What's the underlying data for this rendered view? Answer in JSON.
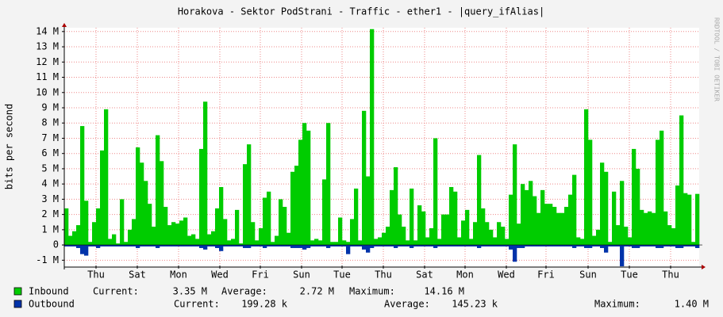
{
  "chart_data": {
    "type": "area",
    "title": "Horakova - Sektor PodStrani - Traffic - ether1 - |query_ifAlias|",
    "ylabel": "bits per second",
    "watermark": "RRDTOOL / TOBI OETIKER",
    "ylim": [
      -1.45,
      14.25
    ],
    "yticks": [
      {
        "value": -1,
        "label": "-1 M"
      },
      0,
      {
        "value": 1,
        "label": "1 M"
      },
      {
        "value": 2,
        "label": "2 M"
      },
      {
        "value": 3,
        "label": "3 M"
      },
      {
        "value": 4,
        "label": "4 M"
      },
      {
        "value": 5,
        "label": "5 M"
      },
      {
        "value": 6,
        "label": "6 M"
      },
      {
        "value": 7,
        "label": "7 M"
      },
      {
        "value": 8,
        "label": "8 M"
      },
      {
        "value": 9,
        "label": "9 M"
      },
      {
        "value": 10,
        "label": "10 M"
      },
      {
        "value": 11,
        "label": "11 M"
      },
      {
        "value": 12,
        "label": "12 M"
      },
      {
        "value": 13,
        "label": "13 M"
      },
      {
        "value": 14,
        "label": "14 M"
      }
    ],
    "xlim": [
      0,
      160
    ],
    "xticks": [
      {
        "value": 8,
        "label": "Thu"
      },
      {
        "value": 18.4,
        "label": "Sat"
      },
      {
        "value": 28.8,
        "label": "Mon"
      },
      {
        "value": 39.2,
        "label": "Wed"
      },
      {
        "value": 49.4,
        "label": "Fri"
      },
      {
        "value": 59.8,
        "label": "Sun"
      },
      {
        "value": 70,
        "label": "Tue"
      },
      {
        "value": 80.4,
        "label": "Thu"
      },
      {
        "value": 90.8,
        "label": "Sat"
      },
      {
        "value": 101,
        "label": "Mon"
      },
      {
        "value": 111.4,
        "label": "Wed"
      },
      {
        "value": 121.4,
        "label": "Fri"
      },
      {
        "value": 132,
        "label": "Sun"
      },
      {
        "value": 142.4,
        "label": "Tue"
      },
      {
        "value": 152.8,
        "label": "Thu"
      }
    ],
    "grid": true,
    "series": [
      {
        "name": "Inbound",
        "color": "#00cc00",
        "legend": [
          "Current:",
          "3.35 M",
          "Average:",
          "2.72 M",
          "Maximum:",
          "14.16 M"
        ],
        "values": [
          2.4,
          0.6,
          0.9,
          1.3,
          7.8,
          2.9,
          0.2,
          1.5,
          2.4,
          6.2,
          8.9,
          0.4,
          0.7,
          0.1,
          3.0,
          0.2,
          1.0,
          1.7,
          6.4,
          5.4,
          4.2,
          2.7,
          1.2,
          7.2,
          5.5,
          2.5,
          1.3,
          1.5,
          1.4,
          1.6,
          1.8,
          0.6,
          0.7,
          0.4,
          6.3,
          9.4,
          0.7,
          0.9,
          2.4,
          3.8,
          1.7,
          0.3,
          0.4,
          2.3,
          0.1,
          5.3,
          6.6,
          1.5,
          0.3,
          1.1,
          3.1,
          3.5,
          0.2,
          0.6,
          3.0,
          2.5,
          0.8,
          4.8,
          5.2,
          6.9,
          8.0,
          7.5,
          0.3,
          0.4,
          0.3,
          4.3,
          8.0,
          0.2,
          0.2,
          1.8,
          0.3,
          0.2,
          1.7,
          3.7,
          0.3,
          8.8,
          4.5,
          14.16,
          0.4,
          0.5,
          0.8,
          1.2,
          3.6,
          5.1,
          2.0,
          1.2,
          0.3,
          3.7,
          0.3,
          2.6,
          2.2,
          0.5,
          1.1,
          7.0,
          0.4,
          2.0,
          2.0,
          3.8,
          3.5,
          0.5,
          1.6,
          2.3,
          0.4,
          1.5,
          5.9,
          2.4,
          1.5,
          1.0,
          0.5,
          1.5,
          1.2,
          0.4,
          3.3,
          6.6,
          1.4,
          4.0,
          3.6,
          4.2,
          3.2,
          2.1,
          3.6,
          2.7,
          2.7,
          2.5,
          2.1,
          2.1,
          2.5,
          3.3,
          4.6,
          0.5,
          0.4,
          8.9,
          6.9,
          0.6,
          1.0,
          5.4,
          4.8,
          0.2,
          3.5,
          1.3,
          4.2,
          1.2,
          0.5,
          6.3,
          5.0,
          2.3,
          2.1,
          2.2,
          2.1,
          6.9,
          7.5,
          2.2,
          1.3,
          1.1,
          3.9,
          8.5,
          3.4,
          3.3,
          0.2,
          3.35
        ]
      },
      {
        "name": "Outbound",
        "color": "#0033aa",
        "legend": [
          "Current:",
          "199.28 k",
          "Average:",
          "145.23 k",
          "Maximum:",
          "1.40 M"
        ],
        "values": [
          -0.1,
          -0.1,
          -0.1,
          -0.2,
          -0.6,
          -0.7,
          -0.1,
          -0.1,
          -0.2,
          -0.1,
          -0.1,
          -0.1,
          -0.1,
          -0.1,
          -0.1,
          -0.1,
          -0.1,
          -0.1,
          -0.2,
          -0.1,
          -0.1,
          -0.1,
          -0.1,
          -0.2,
          -0.1,
          -0.1,
          -0.1,
          -0.1,
          -0.1,
          -0.1,
          -0.1,
          -0.1,
          -0.1,
          -0.1,
          -0.2,
          -0.3,
          -0.1,
          -0.1,
          -0.2,
          -0.4,
          -0.1,
          -0.1,
          -0.1,
          -0.1,
          -0.1,
          -0.2,
          -0.2,
          -0.1,
          -0.1,
          -0.1,
          -0.2,
          -0.1,
          -0.1,
          -0.1,
          -0.1,
          -0.1,
          -0.1,
          -0.2,
          -0.2,
          -0.2,
          -0.3,
          -0.2,
          -0.1,
          -0.1,
          -0.1,
          -0.1,
          -0.2,
          -0.1,
          -0.1,
          -0.1,
          -0.1,
          -0.6,
          -0.1,
          -0.1,
          -0.1,
          -0.3,
          -0.5,
          -0.2,
          -0.1,
          -0.1,
          -0.1,
          -0.1,
          -0.1,
          -0.2,
          -0.1,
          -0.1,
          -0.1,
          -0.2,
          -0.1,
          -0.1,
          -0.1,
          -0.1,
          -0.1,
          -0.2,
          -0.1,
          -0.1,
          -0.1,
          -0.1,
          -0.1,
          -0.1,
          -0.1,
          -0.1,
          -0.1,
          -0.1,
          -0.2,
          -0.1,
          -0.1,
          -0.1,
          -0.1,
          -0.1,
          -0.1,
          -0.1,
          -0.3,
          -1.1,
          -0.2,
          -0.2,
          -0.1,
          -0.1,
          -0.1,
          -0.1,
          -0.1,
          -0.1,
          -0.1,
          -0.1,
          -0.1,
          -0.1,
          -0.1,
          -0.1,
          -0.2,
          -0.1,
          -0.1,
          -0.2,
          -0.2,
          -0.1,
          -0.1,
          -0.2,
          -0.5,
          -0.1,
          -0.1,
          -0.1,
          -1.4,
          -0.1,
          -0.1,
          -0.2,
          -0.2,
          -0.1,
          -0.1,
          -0.1,
          -0.1,
          -0.2,
          -0.2,
          -0.1,
          -0.1,
          -0.1,
          -0.2,
          -0.2,
          -0.1,
          -0.1,
          -0.1,
          -0.2
        ]
      }
    ]
  }
}
